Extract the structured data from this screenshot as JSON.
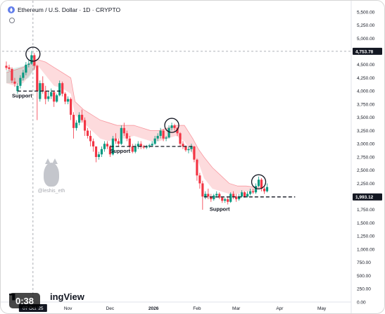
{
  "chart_data": {
    "type": "candlestick",
    "title": "Ethereum / U.S. Dollar · 1D · CRYPTO",
    "y_ticks": [
      0,
      250,
      500,
      750,
      1000,
      1250,
      1500,
      1750,
      2000,
      2250,
      2500,
      2750,
      3000,
      3250,
      3500,
      3750,
      4000,
      4250,
      4500,
      4750,
      5000,
      5250,
      5500
    ],
    "y_tick_labels": [
      "0.00",
      "250.00",
      "500.00",
      "750.00",
      "1,000.00",
      "1,250.00",
      "1,500.00",
      "1,750.00",
      "2,000.00",
      "2,250.00",
      "2,500.00",
      "2,750.00",
      "3,000.00",
      "3,250.00",
      "3,500.00",
      "3,750.00",
      "4,000.00",
      "4,250.00",
      "4,500.00",
      "4,750.00",
      "5,000.00",
      "5,250.00",
      "5,500.00"
    ],
    "ylim": [
      0,
      5500
    ],
    "xlim": [
      "2025-09-18",
      "2026-05-20"
    ],
    "x_ticks": [
      {
        "date": "2025-10-07",
        "label": "07 Oct '25",
        "highlight": true
      },
      {
        "date": "2025-11-01",
        "label": "Nov"
      },
      {
        "date": "2025-12-01",
        "label": "Dec"
      },
      {
        "date": "2026-01-01",
        "label": "2026"
      },
      {
        "date": "2026-02-01",
        "label": "Feb"
      },
      {
        "date": "2026-03-01",
        "label": "Mar"
      },
      {
        "date": "2026-04-01",
        "label": "Apr"
      },
      {
        "date": "2026-05-01",
        "label": "May"
      }
    ],
    "price_labels": [
      {
        "value": 4753.78,
        "label": "4,753.78",
        "dashed": true
      },
      {
        "value": 1993.12,
        "label": "1,993.12"
      }
    ],
    "candles": [
      {
        "date": "2025-09-18",
        "o": 4480,
        "h": 4560,
        "c": 4440,
        "l": 4400
      },
      {
        "date": "2025-09-20",
        "o": 4450,
        "h": 4500,
        "c": 4420,
        "l": 4380
      },
      {
        "date": "2025-09-22",
        "o": 4420,
        "h": 4450,
        "c": 4200,
        "l": 4150
      },
      {
        "date": "2025-09-24",
        "o": 4180,
        "h": 4250,
        "c": 4140,
        "l": 4080
      },
      {
        "date": "2025-09-26",
        "o": 4000,
        "h": 4150,
        "c": 4100,
        "l": 3950
      },
      {
        "date": "2025-09-28",
        "o": 4100,
        "h": 4300,
        "c": 4250,
        "l": 4050
      },
      {
        "date": "2025-09-30",
        "o": 4250,
        "h": 4400,
        "c": 4350,
        "l": 4200
      },
      {
        "date": "2025-10-02",
        "o": 4350,
        "h": 4550,
        "c": 4500,
        "l": 4300
      },
      {
        "date": "2025-10-04",
        "o": 4500,
        "h": 4600,
        "c": 4520,
        "l": 4450
      },
      {
        "date": "2025-10-06",
        "o": 4520,
        "h": 4760,
        "c": 4680,
        "l": 4500
      },
      {
        "date": "2025-10-08",
        "o": 4680,
        "h": 4720,
        "c": 4480,
        "l": 4400
      },
      {
        "date": "2025-10-10",
        "o": 4480,
        "h": 4500,
        "c": 4000,
        "l": 3450
      },
      {
        "date": "2025-10-12",
        "o": 3850,
        "h": 4200,
        "c": 4150,
        "l": 3800
      },
      {
        "date": "2025-10-14",
        "o": 4150,
        "h": 4280,
        "c": 4000,
        "l": 3950
      },
      {
        "date": "2025-10-16",
        "o": 4000,
        "h": 4100,
        "c": 3850,
        "l": 3750
      },
      {
        "date": "2025-10-18",
        "o": 3850,
        "h": 4000,
        "c": 3900,
        "l": 3800
      },
      {
        "date": "2025-10-20",
        "o": 3900,
        "h": 4050,
        "c": 3980,
        "l": 3850
      },
      {
        "date": "2025-10-22",
        "o": 3980,
        "h": 4000,
        "c": 3800,
        "l": 3700
      },
      {
        "date": "2025-10-24",
        "o": 3800,
        "h": 3950,
        "c": 3920,
        "l": 3780
      },
      {
        "date": "2025-10-26",
        "o": 3920,
        "h": 4200,
        "c": 4150,
        "l": 3900
      },
      {
        "date": "2025-10-28",
        "o": 4150,
        "h": 4180,
        "c": 3950,
        "l": 3900
      },
      {
        "date": "2025-10-30",
        "o": 3950,
        "h": 3980,
        "c": 3800,
        "l": 3750
      },
      {
        "date": "2025-11-01",
        "o": 3800,
        "h": 3900,
        "c": 3850,
        "l": 3750
      },
      {
        "date": "2025-11-03",
        "o": 3850,
        "h": 3880,
        "c": 3550,
        "l": 3450
      },
      {
        "date": "2025-11-05",
        "o": 3550,
        "h": 3600,
        "c": 3300,
        "l": 3100
      },
      {
        "date": "2025-11-07",
        "o": 3300,
        "h": 3450,
        "c": 3400,
        "l": 3250
      },
      {
        "date": "2025-11-09",
        "o": 3400,
        "h": 3600,
        "c": 3550,
        "l": 3350
      },
      {
        "date": "2025-11-11",
        "o": 3550,
        "h": 3650,
        "c": 3450,
        "l": 3400
      },
      {
        "date": "2025-11-13",
        "o": 3450,
        "h": 3500,
        "c": 3250,
        "l": 3150
      },
      {
        "date": "2025-11-15",
        "o": 3250,
        "h": 3300,
        "c": 3150,
        "l": 3100
      },
      {
        "date": "2025-11-17",
        "o": 3150,
        "h": 3250,
        "c": 3050,
        "l": 2950
      },
      {
        "date": "2025-11-19",
        "o": 3050,
        "h": 3100,
        "c": 2950,
        "l": 2850
      },
      {
        "date": "2025-11-21",
        "o": 2950,
        "h": 2950,
        "c": 2750,
        "l": 2650
      },
      {
        "date": "2025-11-23",
        "o": 2750,
        "h": 2850,
        "c": 2800,
        "l": 2700
      },
      {
        "date": "2025-11-25",
        "o": 2800,
        "h": 2950,
        "c": 2900,
        "l": 2750
      },
      {
        "date": "2025-11-27",
        "o": 2900,
        "h": 3050,
        "c": 3000,
        "l": 2850
      },
      {
        "date": "2025-11-29",
        "o": 3000,
        "h": 3050,
        "c": 2950,
        "l": 2900
      },
      {
        "date": "2025-12-01",
        "o": 2950,
        "h": 2980,
        "c": 2800,
        "l": 2750
      },
      {
        "date": "2025-12-03",
        "o": 2800,
        "h": 3150,
        "c": 3100,
        "l": 2780
      },
      {
        "date": "2025-12-05",
        "o": 3100,
        "h": 3200,
        "c": 3050,
        "l": 3000
      },
      {
        "date": "2025-12-07",
        "o": 3050,
        "h": 3100,
        "c": 3000,
        "l": 2950
      },
      {
        "date": "2025-12-09",
        "o": 3000,
        "h": 3350,
        "c": 3300,
        "l": 2980
      },
      {
        "date": "2025-12-11",
        "o": 3300,
        "h": 3400,
        "c": 3200,
        "l": 3150
      },
      {
        "date": "2025-12-13",
        "o": 3200,
        "h": 3250,
        "c": 3100,
        "l": 3050
      },
      {
        "date": "2025-12-15",
        "o": 3100,
        "h": 3150,
        "c": 2950,
        "l": 2900
      },
      {
        "date": "2025-12-17",
        "o": 2950,
        "h": 3000,
        "c": 2850,
        "l": 2820
      },
      {
        "date": "2025-12-19",
        "o": 2850,
        "h": 3000,
        "c": 2950,
        "l": 2820
      },
      {
        "date": "2025-12-21",
        "o": 2950,
        "h": 3050,
        "c": 3000,
        "l": 2900
      },
      {
        "date": "2025-12-23",
        "o": 3000,
        "h": 3050,
        "c": 2950,
        "l": 2900
      },
      {
        "date": "2025-12-25",
        "o": 2950,
        "h": 2980,
        "c": 2930,
        "l": 2900
      },
      {
        "date": "2025-12-27",
        "o": 2930,
        "h": 2980,
        "c": 2950,
        "l": 2900
      },
      {
        "date": "2025-12-29",
        "o": 2950,
        "h": 3000,
        "c": 2970,
        "l": 2920
      },
      {
        "date": "2025-12-31",
        "o": 2970,
        "h": 3050,
        "c": 3000,
        "l": 2950
      },
      {
        "date": "2026-01-02",
        "o": 3000,
        "h": 3150,
        "c": 3100,
        "l": 2980
      },
      {
        "date": "2026-01-04",
        "o": 3100,
        "h": 3200,
        "c": 3150,
        "l": 3050
      },
      {
        "date": "2026-01-06",
        "o": 3150,
        "h": 3300,
        "c": 3250,
        "l": 3100
      },
      {
        "date": "2026-01-08",
        "o": 3250,
        "h": 3280,
        "c": 3100,
        "l": 3050
      },
      {
        "date": "2026-01-10",
        "o": 3100,
        "h": 3150,
        "c": 3120,
        "l": 3050
      },
      {
        "date": "2026-01-12",
        "o": 3120,
        "h": 3350,
        "c": 3300,
        "l": 3100
      },
      {
        "date": "2026-01-14",
        "o": 3300,
        "h": 3400,
        "c": 3350,
        "l": 3250
      },
      {
        "date": "2026-01-16",
        "o": 3350,
        "h": 3380,
        "c": 3300,
        "l": 3250
      },
      {
        "date": "2026-01-18",
        "o": 3300,
        "h": 3320,
        "c": 3200,
        "l": 3150
      },
      {
        "date": "2026-01-20",
        "o": 3200,
        "h": 3220,
        "c": 3000,
        "l": 2950
      },
      {
        "date": "2026-01-22",
        "o": 3000,
        "h": 3050,
        "c": 2950,
        "l": 2900
      },
      {
        "date": "2026-01-24",
        "o": 2950,
        "h": 2970,
        "c": 2880,
        "l": 2850
      },
      {
        "date": "2026-01-26",
        "o": 2880,
        "h": 2950,
        "c": 2900,
        "l": 2820
      },
      {
        "date": "2026-01-28",
        "o": 2900,
        "h": 3000,
        "c": 2950,
        "l": 2850
      },
      {
        "date": "2026-01-30",
        "o": 2950,
        "h": 2960,
        "c": 2700,
        "l": 2650
      },
      {
        "date": "2026-02-01",
        "o": 2700,
        "h": 2720,
        "c": 2400,
        "l": 2300
      },
      {
        "date": "2026-02-03",
        "o": 2400,
        "h": 2450,
        "c": 2250,
        "l": 2150
      },
      {
        "date": "2026-02-05",
        "o": 2250,
        "h": 2300,
        "c": 2000,
        "l": 1750
      },
      {
        "date": "2026-02-07",
        "o": 2000,
        "h": 2100,
        "c": 2050,
        "l": 1950
      },
      {
        "date": "2026-02-09",
        "o": 2050,
        "h": 2150,
        "c": 2000,
        "l": 1950
      },
      {
        "date": "2026-02-11",
        "o": 2000,
        "h": 2050,
        "c": 1950,
        "l": 1900
      },
      {
        "date": "2026-02-13",
        "o": 1950,
        "h": 2050,
        "c": 2020,
        "l": 1920
      },
      {
        "date": "2026-02-15",
        "o": 2020,
        "h": 2100,
        "c": 2050,
        "l": 1980
      },
      {
        "date": "2026-02-17",
        "o": 2050,
        "h": 2080,
        "c": 1980,
        "l": 1950
      },
      {
        "date": "2026-02-19",
        "o": 1980,
        "h": 2000,
        "c": 1920,
        "l": 1880
      },
      {
        "date": "2026-02-21",
        "o": 1920,
        "h": 1980,
        "c": 1950,
        "l": 1880
      },
      {
        "date": "2026-02-23",
        "o": 1950,
        "h": 2000,
        "c": 1900,
        "l": 1850
      },
      {
        "date": "2026-02-25",
        "o": 1900,
        "h": 2080,
        "c": 2050,
        "l": 1880
      },
      {
        "date": "2026-02-27",
        "o": 2050,
        "h": 2100,
        "c": 2000,
        "l": 1950
      },
      {
        "date": "2026-03-01",
        "o": 2000,
        "h": 2050,
        "c": 1950,
        "l": 1900
      },
      {
        "date": "2026-03-03",
        "o": 1950,
        "h": 2050,
        "c": 2000,
        "l": 1920
      },
      {
        "date": "2026-03-05",
        "o": 2000,
        "h": 2120,
        "c": 2080,
        "l": 1980
      },
      {
        "date": "2026-03-07",
        "o": 2080,
        "h": 2100,
        "c": 2000,
        "l": 1980
      },
      {
        "date": "2026-03-09",
        "o": 2000,
        "h": 2100,
        "c": 2050,
        "l": 1980
      },
      {
        "date": "2026-03-11",
        "o": 2050,
        "h": 2150,
        "c": 2100,
        "l": 2020
      },
      {
        "date": "2026-03-13",
        "o": 2100,
        "h": 2150,
        "c": 2080,
        "l": 2050
      },
      {
        "date": "2026-03-15",
        "o": 2080,
        "h": 2250,
        "c": 2200,
        "l": 2050
      },
      {
        "date": "2026-03-17",
        "o": 2200,
        "h": 2380,
        "c": 2320,
        "l": 2180
      },
      {
        "date": "2026-03-19",
        "o": 2320,
        "h": 2350,
        "c": 2150,
        "l": 2100
      },
      {
        "date": "2026-03-21",
        "o": 2150,
        "h": 2200,
        "c": 2100,
        "l": 2050
      },
      {
        "date": "2026-03-23",
        "o": 2100,
        "h": 2250,
        "c": 2180,
        "l": 2080
      }
    ],
    "cloud": [
      {
        "date": "2025-09-18",
        "upper": 4350,
        "lower": 4150
      },
      {
        "date": "2025-09-24",
        "upper": 4400,
        "lower": 4100
      },
      {
        "date": "2025-09-30",
        "upper": 4450,
        "lower": 4150
      },
      {
        "date": "2025-10-06",
        "upper": 4550,
        "lower": 4350
      },
      {
        "date": "2025-10-10",
        "upper": 4600,
        "lower": 4500
      },
      {
        "date": "2025-10-16",
        "upper": 4550,
        "lower": 4300
      },
      {
        "date": "2025-10-22",
        "upper": 4450,
        "lower": 4100
      },
      {
        "date": "2025-10-28",
        "upper": 4350,
        "lower": 4050
      },
      {
        "date": "2025-11-03",
        "upper": 4250,
        "lower": 3950
      },
      {
        "date": "2025-11-06",
        "upper": 3800,
        "lower": 3550
      },
      {
        "date": "2025-11-12",
        "upper": 3650,
        "lower": 3400
      },
      {
        "date": "2025-11-18",
        "upper": 3550,
        "lower": 3250
      },
      {
        "date": "2025-11-24",
        "upper": 3450,
        "lower": 3100
      },
      {
        "date": "2025-11-30",
        "upper": 3400,
        "lower": 3050
      },
      {
        "date": "2025-12-06",
        "upper": 3350,
        "lower": 3100
      },
      {
        "date": "2025-12-12",
        "upper": 3350,
        "lower": 3100
      },
      {
        "date": "2025-12-18",
        "upper": 3350,
        "lower": 3150
      },
      {
        "date": "2025-12-24",
        "upper": 3300,
        "lower": 3100
      },
      {
        "date": "2025-12-30",
        "upper": 3250,
        "lower": 3050
      },
      {
        "date": "2026-01-05",
        "upper": 3250,
        "lower": 3050
      },
      {
        "date": "2026-01-11",
        "upper": 3300,
        "lower": 3100
      },
      {
        "date": "2026-01-17",
        "upper": 3350,
        "lower": 3150
      },
      {
        "date": "2026-01-23",
        "upper": 3350,
        "lower": 3050
      },
      {
        "date": "2026-01-29",
        "upper": 3100,
        "lower": 2800
      },
      {
        "date": "2026-02-02",
        "upper": 2900,
        "lower": 2650
      },
      {
        "date": "2026-02-06",
        "upper": 2750,
        "lower": 2350
      },
      {
        "date": "2026-02-12",
        "upper": 2550,
        "lower": 2150
      },
      {
        "date": "2026-02-18",
        "upper": 2400,
        "lower": 2100
      },
      {
        "date": "2026-02-24",
        "upper": 2250,
        "lower": 2050
      },
      {
        "date": "2026-03-02",
        "upper": 2200,
        "lower": 2050
      },
      {
        "date": "2026-03-08",
        "upper": 2200,
        "lower": 2100
      },
      {
        "date": "2026-03-14",
        "upper": 2180,
        "lower": 2100
      },
      {
        "date": "2026-03-18",
        "upper": 2180,
        "lower": 2150
      }
    ],
    "green_cloud": [
      {
        "date": "2025-09-18",
        "upper": 4400,
        "lower": 4150
      },
      {
        "date": "2025-09-26",
        "upper": 4450,
        "lower": 4150
      },
      {
        "date": "2025-10-04",
        "upper": 4500,
        "lower": 4250
      },
      {
        "date": "2025-10-09",
        "upper": 4550,
        "lower": 4450
      }
    ],
    "annotations": [
      {
        "label": "Support",
        "from": "2025-09-26",
        "to": "2025-10-28",
        "y": 4000,
        "text_date": "2025-09-22",
        "text_y": 3880
      },
      {
        "label": "Support",
        "from": "2025-12-01",
        "to": "2026-01-30",
        "y": 2950,
        "text_date": "2025-12-01",
        "text_y": 2830
      },
      {
        "label": "Support",
        "from": "2026-02-06",
        "to": "2026-04-12",
        "y": 1993,
        "text_date": "2026-02-10",
        "text_y": 1730
      }
    ],
    "circles": [
      {
        "date": "2025-10-07",
        "y": 4700
      },
      {
        "date": "2026-01-14",
        "y": 3350
      },
      {
        "date": "2026-03-17",
        "y": 2280
      }
    ],
    "grid": false,
    "legend": "none"
  },
  "ui": {
    "title": "Ethereum / U.S. Dollar · 1D · CRYPTO",
    "video_time": "0:38",
    "logo_text": "ingView",
    "watermark_handle": "@leshis_eth"
  }
}
